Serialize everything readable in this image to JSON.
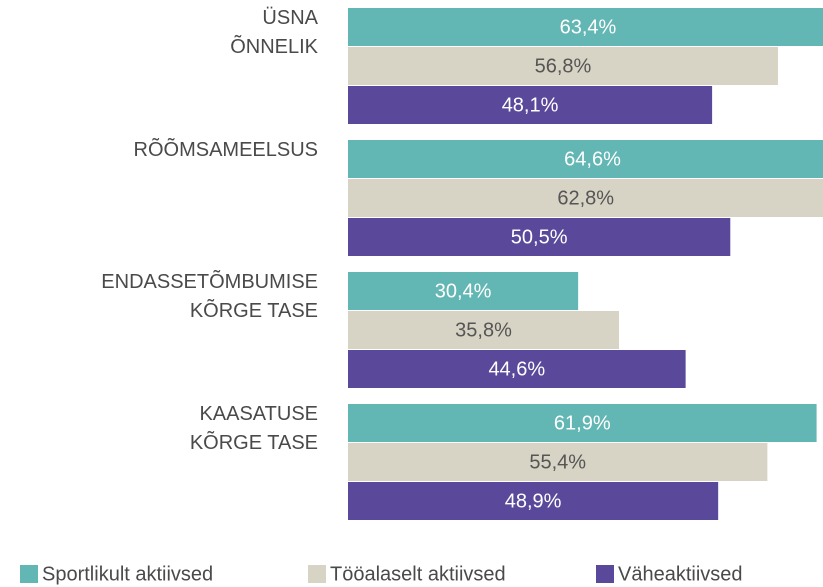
{
  "chart_data": {
    "type": "hbar",
    "categories": [
      "ÜSNA\nÕNNELIK",
      "RÕÕMSAMEELSUS",
      "ENDASSETÕMBUMISE\nKÕRGE TASE",
      "KAASATUSE\nKÕRGE TASE"
    ],
    "series": [
      {
        "name": "Sportlikult aktiivsed",
        "color": "#62b6b3",
        "values": [
          63.4,
          64.6,
          30.4,
          61.9
        ],
        "value_labels": [
          "63,4%",
          "64,6%",
          "30,4%",
          "61,9%"
        ]
      },
      {
        "name": "Tööalaselt aktiivsed",
        "color": "#d7d4c5",
        "values": [
          56.8,
          62.8,
          35.8,
          55.4
        ],
        "value_labels": [
          "56,8%",
          "62,8%",
          "35,8%",
          "55,4%"
        ]
      },
      {
        "name": "Väheaktiivsed",
        "color": "#5a499b",
        "values": [
          48.1,
          50.5,
          44.6,
          48.9
        ],
        "value_labels": [
          "48,1%",
          "50,5%",
          "44,6%",
          "48,9%"
        ]
      }
    ],
    "legend": "bottom"
  }
}
